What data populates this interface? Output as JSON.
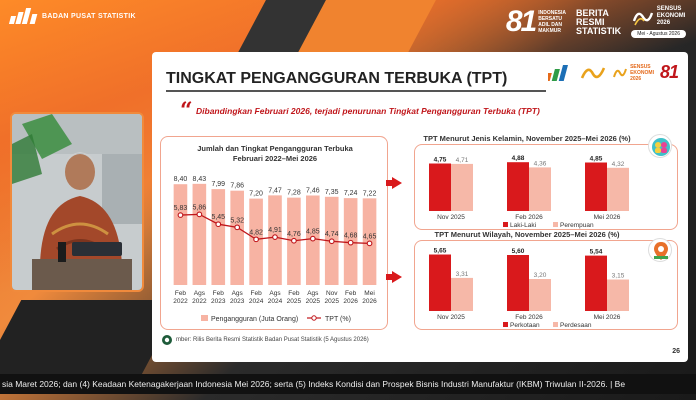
{
  "header": {
    "org_name": "BADAN PUSAT STATISTIK",
    "logo81_text": [
      "INDONESIA",
      "BERSATU",
      "ADIL DAN",
      "MAKMUR"
    ],
    "brs_text": [
      "BERITA",
      "RESMI",
      "STATISTIK"
    ],
    "se_text": [
      "SENSUS",
      "EKONOMI",
      "2026"
    ],
    "se_dates": "Mei - Agustus 2026"
  },
  "colors": {
    "accent_orange": "#f08a3c",
    "dark_red": "#d9191c",
    "light_red": "#f6b8a8",
    "bar_salmon": "#f7b3a3",
    "line_red": "#c0161b"
  },
  "slide": {
    "title": "TINGKAT PENGANGGURAN TERBUKA (TPT)",
    "subtitle": "Dibandingkan Februari 2026, terjadi penurunan Tingkat Pengangguran Terbuka (TPT)",
    "source": "mber: Rilis Berita Resmi Statistik Badan Pusat Statistik (5 Agustus 2026)",
    "page": "26",
    "slide_logo_se": [
      "SENSUS",
      "EKONOMI",
      "2026"
    ]
  },
  "chart_data": [
    {
      "type": "bar",
      "title": "Jumlah dan Tingkat Pengangguran Terbuka",
      "subtitle": "Februari 2022–Mei 2026",
      "categories": [
        "Feb 2022",
        "Ags 2022",
        "Feb 2023",
        "Ags 2023",
        "Feb 2024",
        "Ags 2024",
        "Feb 2025",
        "Ags 2025",
        "Nov 2025",
        "Feb 2026",
        "Mei 2026"
      ],
      "series": [
        {
          "name": "Pengangguran (Juta Orang)",
          "type": "bar",
          "values": [
            8.4,
            8.43,
            7.99,
            7.86,
            7.2,
            7.47,
            7.28,
            7.46,
            7.35,
            7.24,
            7.22
          ]
        },
        {
          "name": "TPT (%)",
          "type": "line",
          "values": [
            5.83,
            5.86,
            5.45,
            5.32,
            4.82,
            4.91,
            4.76,
            4.85,
            4.74,
            4.68,
            4.65
          ]
        }
      ],
      "labels_bar": [
        "8,40",
        "8,43",
        "7,99",
        "7,86",
        "7,20",
        "7,47",
        "7,28",
        "7,46",
        "7,35",
        "7,24",
        "7,22"
      ],
      "labels_line": [
        "5,83",
        "5,86",
        "5,45",
        "5,32",
        "4,82",
        "4,91",
        "4,76",
        "4,85",
        "4,74",
        "4,68",
        "4,65"
      ],
      "category_lines": [
        [
          "Feb",
          "2022"
        ],
        [
          "Ags",
          "2022"
        ],
        [
          "Feb",
          "2023"
        ],
        [
          "Ags",
          "2023"
        ],
        [
          "Feb",
          "2024"
        ],
        [
          "Ags",
          "2024"
        ],
        [
          "Feb",
          "2025"
        ],
        [
          "Ags",
          "2025"
        ],
        [
          "Nov",
          "2025"
        ],
        [
          "Feb",
          "2026"
        ],
        [
          "Mei",
          "2026"
        ]
      ],
      "legend": [
        "Pengangguran (Juta Orang)",
        "TPT (%)"
      ],
      "legend_position": "bottom"
    },
    {
      "type": "bar",
      "title": "TPT Menurut Jenis Kelamin, November 2025–Mei 2026 (%)",
      "categories": [
        "Nov 2025",
        "Feb 2026",
        "Mei 2026"
      ],
      "series": [
        {
          "name": "Laki-Laki",
          "values": [
            4.75,
            4.88,
            4.85
          ]
        },
        {
          "name": "Perempuan",
          "values": [
            4.71,
            4.36,
            4.32
          ]
        }
      ],
      "labels": [
        [
          "4,75",
          "4,71"
        ],
        [
          "4,88",
          "4,36"
        ],
        [
          "4,85",
          "4,32"
        ]
      ],
      "legend": [
        "Laki-Laki",
        "Perempuan"
      ],
      "legend_position": "bottom"
    },
    {
      "type": "bar",
      "title": "TPT Menurut Wilayah, November 2025–Mei 2026 (%)",
      "categories": [
        "Nov 2025",
        "Feb 2026",
        "Mei 2026"
      ],
      "series": [
        {
          "name": "Perkotaan",
          "values": [
            5.65,
            5.6,
            5.54
          ]
        },
        {
          "name": "Perdesaan",
          "values": [
            3.31,
            3.2,
            3.15
          ]
        }
      ],
      "labels": [
        [
          "5,65",
          "3,31"
        ],
        [
          "5,60",
          "3,20"
        ],
        [
          "5,54",
          "3,15"
        ]
      ],
      "legend": [
        "Perkotaan",
        "Perdesaan"
      ],
      "legend_position": "bottom"
    }
  ],
  "ticker": "sia Maret 2026; dan (4) Keadaan Ketenagakerjaan Indonesia Mei 2026; serta (5) Indeks Kondisi dan Prospek Bisnis Industri Manufaktur (IKBM) Triwulan II-2026.  |  Be"
}
